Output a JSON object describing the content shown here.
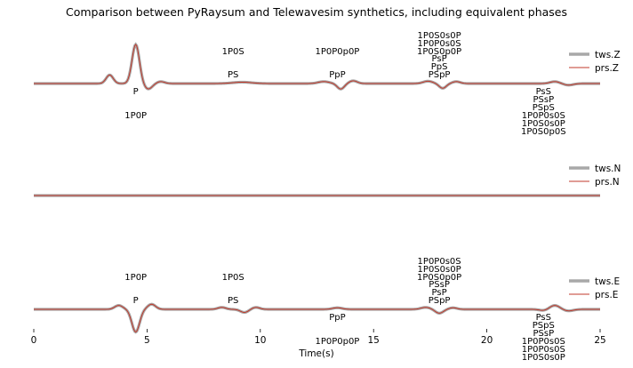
{
  "chart_data": {
    "type": "line",
    "title": "Comparison between PyRaysum and Telewavesim synthetics, including equivalent phases",
    "xlabel": "Time(s)",
    "xlim": [
      0,
      25
    ],
    "xticks": [
      0,
      5,
      10,
      15,
      20,
      25
    ],
    "colors": {
      "tws": "#a8a8a8",
      "prs": "#c0392b"
    },
    "panels": [
      {
        "component": "Z",
        "legend": [
          "tws.Z",
          "prs.Z"
        ],
        "pulses": [
          {
            "t": 3.35,
            "a": 0.22,
            "w": 0.22
          },
          {
            "t": 4.5,
            "a": 1.0,
            "w": 0.23
          },
          {
            "t": 5.05,
            "a": -0.14,
            "w": 0.25
          },
          {
            "t": 5.6,
            "a": 0.05,
            "w": 0.25
          },
          {
            "t": 9.2,
            "a": 0.035,
            "w": 0.6
          },
          {
            "t": 12.8,
            "a": 0.05,
            "w": 0.35
          },
          {
            "t": 13.55,
            "a": -0.14,
            "w": 0.22
          },
          {
            "t": 14.1,
            "a": 0.07,
            "w": 0.25
          },
          {
            "t": 17.4,
            "a": 0.06,
            "w": 0.3
          },
          {
            "t": 18.05,
            "a": -0.12,
            "w": 0.22
          },
          {
            "t": 18.65,
            "a": 0.05,
            "w": 0.25
          },
          {
            "t": 23.0,
            "a": 0.05,
            "w": 0.3
          },
          {
            "t": 23.6,
            "a": -0.04,
            "w": 0.3
          }
        ],
        "annotations": [
          {
            "t": 4.5,
            "pos": "below",
            "lines": [
              "P"
            ],
            "offset": 1
          },
          {
            "t": 4.5,
            "pos": "below",
            "lines": [
              "1P0P"
            ],
            "offset": 2
          },
          {
            "t": 8.8,
            "pos": "above",
            "lines": [
              "PS"
            ],
            "offset": 1
          },
          {
            "t": 8.8,
            "pos": "above",
            "lines": [
              "1P0S"
            ],
            "offset": 2
          },
          {
            "t": 13.4,
            "pos": "above",
            "lines": [
              "PpP"
            ],
            "offset": 1
          },
          {
            "t": 13.4,
            "pos": "above",
            "lines": [
              "1P0P0p0P"
            ],
            "offset": 2
          },
          {
            "t": 17.9,
            "pos": "above",
            "lines": [
              "PsP",
              "PpS",
              "PSpP"
            ],
            "offset": 1
          },
          {
            "t": 17.9,
            "pos": "above",
            "lines": [
              "1P0S0s0P",
              "1P0P0s0S",
              "1P0S0p0P"
            ],
            "offset": 2
          },
          {
            "t": 22.5,
            "pos": "below",
            "lines": [
              "PsS",
              "PSsP",
              "PSpS",
              "1P0P0s0S",
              "1P0S0s0P",
              "1P0S0p0S"
            ],
            "offset": 1
          }
        ]
      },
      {
        "component": "N",
        "legend": [
          "tws.N",
          "prs.N"
        ],
        "pulses": [],
        "annotations": []
      },
      {
        "component": "E",
        "legend": [
          "tws.E",
          "prs.E"
        ],
        "pulses": [
          {
            "t": 3.75,
            "a": 0.1,
            "w": 0.25
          },
          {
            "t": 4.5,
            "a": -0.58,
            "w": 0.24
          },
          {
            "t": 5.2,
            "a": 0.13,
            "w": 0.25
          },
          {
            "t": 8.3,
            "a": 0.05,
            "w": 0.25
          },
          {
            "t": 9.3,
            "a": -0.08,
            "w": 0.25
          },
          {
            "t": 9.8,
            "a": 0.05,
            "w": 0.25
          },
          {
            "t": 13.4,
            "a": 0.04,
            "w": 0.3
          },
          {
            "t": 17.3,
            "a": 0.05,
            "w": 0.3
          },
          {
            "t": 17.9,
            "a": -0.1,
            "w": 0.25
          },
          {
            "t": 18.5,
            "a": 0.04,
            "w": 0.25
          },
          {
            "t": 22.5,
            "a": -0.03,
            "w": 0.25
          },
          {
            "t": 23.0,
            "a": 0.1,
            "w": 0.3
          },
          {
            "t": 23.6,
            "a": -0.04,
            "w": 0.3
          }
        ],
        "annotations": [
          {
            "t": 4.5,
            "pos": "above",
            "lines": [
              "P"
            ],
            "offset": 1
          },
          {
            "t": 4.5,
            "pos": "above",
            "lines": [
              "1P0P"
            ],
            "offset": 2
          },
          {
            "t": 8.8,
            "pos": "above",
            "lines": [
              "PS"
            ],
            "offset": 1
          },
          {
            "t": 8.8,
            "pos": "above",
            "lines": [
              "1P0S"
            ],
            "offset": 2
          },
          {
            "t": 13.4,
            "pos": "below",
            "lines": [
              "PpP"
            ],
            "offset": 1
          },
          {
            "t": 13.4,
            "pos": "below",
            "lines": [
              "1P0P0p0P"
            ],
            "offset": 2
          },
          {
            "t": 17.9,
            "pos": "above",
            "lines": [
              "PSsP",
              "PsP",
              "PSpP"
            ],
            "offset": 1
          },
          {
            "t": 17.9,
            "pos": "above",
            "lines": [
              "1P0P0s0S",
              "1P0S0s0P",
              "1P0S0p0P"
            ],
            "offset": 2
          },
          {
            "t": 22.5,
            "pos": "below",
            "lines": [
              "PsS",
              "PSpS",
              "PSsP",
              "1P0P0s0S",
              "1P0P0s0S",
              "1P0S0s0P"
            ],
            "offset": 1
          }
        ]
      }
    ]
  }
}
